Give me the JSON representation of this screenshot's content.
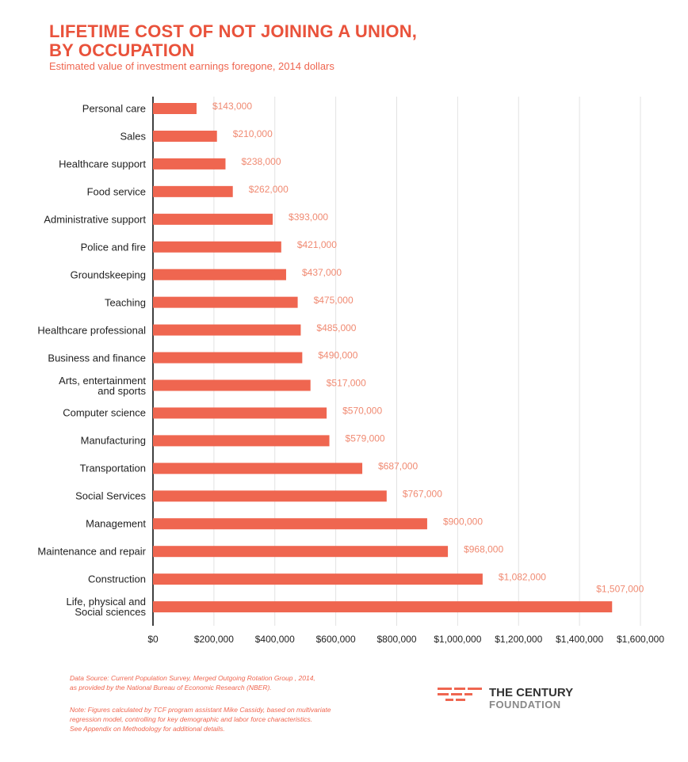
{
  "chart_data": {
    "type": "hbar",
    "title": "LIFETIME COST OF NOT JOINING A UNION,\nBY OCCUPATION",
    "subtitle": "Estimated value of investment earnings foregone, 2014 dollars",
    "categories": [
      "Personal care",
      "Sales",
      "Healthcare support",
      "Food service",
      "Administrative support",
      "Police and fire",
      "Groundskeeping",
      "Teaching",
      "Healthcare professional",
      "Business and finance",
      "Arts, entertainment\nand sports",
      "Computer science",
      "Manufacturing",
      "Transportation",
      "Social Services",
      "Management",
      "Maintenance and repair",
      "Construction",
      "Life, physical and\nSocial sciences"
    ],
    "values": [
      143000,
      210000,
      238000,
      262000,
      393000,
      421000,
      437000,
      475000,
      485000,
      490000,
      517000,
      570000,
      579000,
      687000,
      767000,
      900000,
      968000,
      1082000,
      1507000
    ],
    "value_labels": [
      "$143,000",
      "$210,000",
      "$238,000",
      "$262,000",
      "$393,000",
      "$421,000",
      "$437,000",
      "$475,000",
      "$485,000",
      "$490,000",
      "$517,000",
      "$570,000",
      "$579,000",
      "$687,000",
      "$767,000",
      "$900,000",
      "$968,000",
      "$1,082,000",
      "$1,507,000"
    ],
    "color": "#ef6650",
    "xlim": [
      0,
      1600000
    ],
    "xticks": [
      {
        "value": 0,
        "label": "$0"
      },
      {
        "value": 200000,
        "label": "$200,000"
      },
      {
        "value": 400000,
        "label": "$400,000"
      },
      {
        "value": 600000,
        "label": "$600,000"
      },
      {
        "value": 800000,
        "label": "$800,000"
      },
      {
        "value": 1000000,
        "label": "$1,000,000"
      },
      {
        "value": 1200000,
        "label": "$1,200,000"
      },
      {
        "value": 1400000,
        "label": "$1,400,000"
      },
      {
        "value": 1600000,
        "label": "$1,600,000"
      }
    ],
    "grid": true,
    "source": "Data Source: Current Population Survey, Merged Outgoing Rotation Group , 2014,\n as provided by the National Bureau of Economic Research (NBER).",
    "note": "Note: Figures calculated by TCF program assistant Mike Cassidy, based on multivariate\nregression model, controlling for key demographic and labor force characteristics.\nSee Appendix on Methodology for additional details."
  },
  "logo": {
    "line1": "THE CENTURY",
    "line2": "FOUNDATION"
  }
}
